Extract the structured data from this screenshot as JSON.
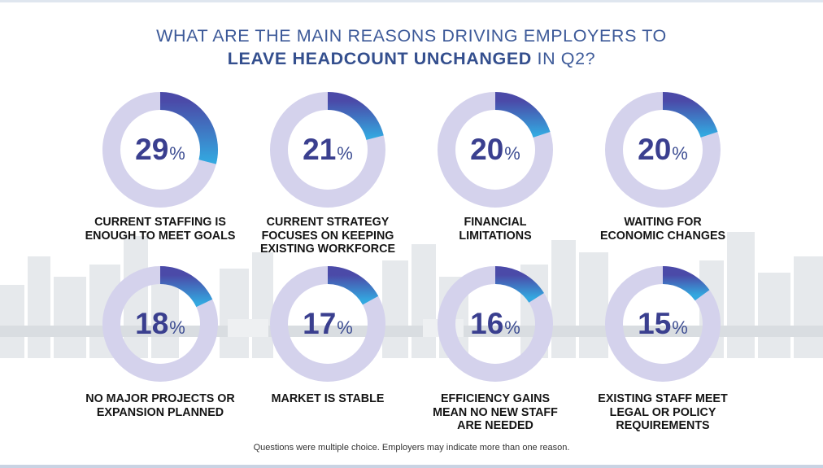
{
  "title": {
    "line1": "WHAT ARE THE MAIN REASONS DRIVING EMPLOYERS TO",
    "line2_bold": "LEAVE HEADCOUNT UNCHANGED",
    "line2_rest": " IN Q2?"
  },
  "footnote": "Questions were multiple choice. Employers may indicate more than one reason.",
  "colors": {
    "ring_track": "#d4d2ec",
    "arc_start": "#4b4aa8",
    "arc_end": "#33a8e0",
    "value_text": "#3a3f8f",
    "title_text": "#3d5a99",
    "skyline": "#e4e7ea"
  },
  "chart_data": {
    "type": "donut",
    "unit": "%",
    "items": [
      {
        "label": "CURRENT STAFFING IS\nENOUGH TO MEET GOALS",
        "value": 29
      },
      {
        "label": "CURRENT STRATEGY\nFOCUSES ON KEEPING\nEXISTING WORKFORCE",
        "value": 21
      },
      {
        "label": "FINANCIAL\nLIMITATIONS",
        "value": 20
      },
      {
        "label": "WAITING FOR\nECONOMIC CHANGES",
        "value": 20
      },
      {
        "label": "NO MAJOR PROJECTS OR\nEXPANSION PLANNED",
        "value": 18
      },
      {
        "label": "MARKET IS STABLE",
        "value": 17
      },
      {
        "label": "EFFICIENCY GAINS\nMEAN NO NEW STAFF\nARE NEEDED",
        "value": 16
      },
      {
        "label": "EXISTING STAFF MEET\nLEGAL OR POLICY\nREQUIREMENTS",
        "value": 15
      }
    ]
  }
}
